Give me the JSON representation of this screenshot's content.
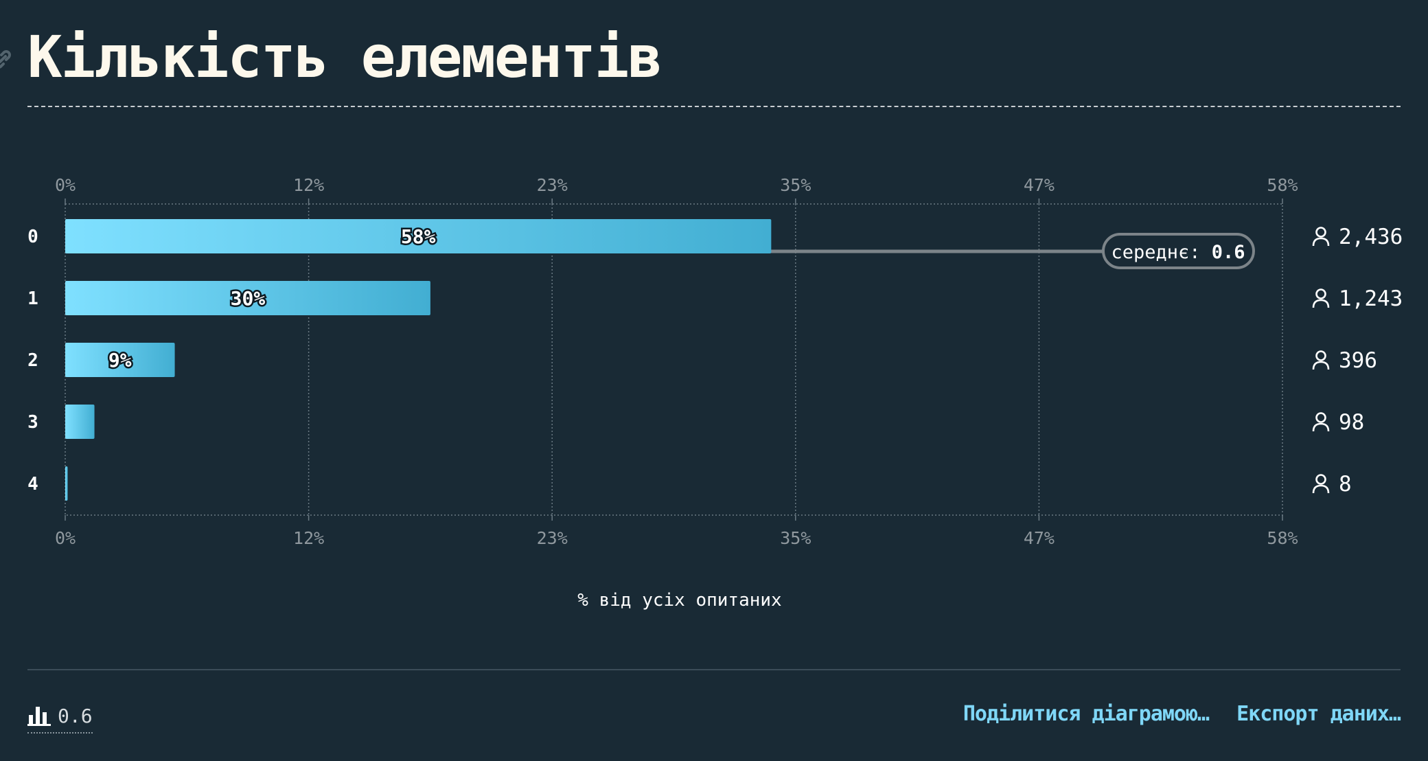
{
  "header": {
    "title": "Кількість елементів",
    "link_icon": "link-icon"
  },
  "chart_data": {
    "type": "bar",
    "orientation": "horizontal",
    "categories": [
      "0",
      "1",
      "2",
      "3",
      "4"
    ],
    "values": [
      58,
      30,
      9,
      2.4,
      0.2
    ],
    "data_labels": [
      "58%",
      "30%",
      "9%",
      "",
      ""
    ],
    "counts": [
      "2,436",
      "1,243",
      "396",
      "98",
      "8"
    ],
    "count_icon": "person-icon",
    "xlabel": "% від усіх опитаних",
    "xlim": [
      0,
      100
    ],
    "ticks": [
      "0%",
      "12%",
      "23%",
      "35%",
      "47%",
      "58%"
    ],
    "grid": true,
    "mean": {
      "label": "середнє:",
      "value": "0.6",
      "position": 0.6
    },
    "bar_color_start": "#7fe0ff",
    "bar_color_end": "#42aed2"
  },
  "footer": {
    "mean_icon": "bar-chart-icon",
    "mean_value": "0.6",
    "share_label": "Поділитися діаграмою…",
    "export_label": "Експорт даних…",
    "link_color": "#7fd7f7"
  }
}
